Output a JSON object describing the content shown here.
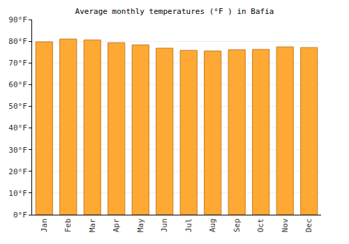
{
  "chart_data": {
    "type": "bar",
    "title": "Average monthly temperatures (°F ) in Bafia",
    "categories": [
      "Jan",
      "Feb",
      "Mar",
      "Apr",
      "May",
      "Jun",
      "Jul",
      "Aug",
      "Sep",
      "Oct",
      "Nov",
      "Dec"
    ],
    "values": [
      79.7,
      81.0,
      80.6,
      79.3,
      78.3,
      76.8,
      75.8,
      75.5,
      76.1,
      76.2,
      77.4,
      77.1
    ],
    "color": "#ffa935",
    "ylim": [
      0,
      90
    ],
    "yticks": [
      {
        "value": 0,
        "label": "0°F"
      },
      {
        "value": 10,
        "label": "10°F"
      },
      {
        "value": 20,
        "label": "20°F"
      },
      {
        "value": 30,
        "label": "30°F"
      },
      {
        "value": 40,
        "label": "40°F"
      },
      {
        "value": 50,
        "label": "50°F"
      },
      {
        "value": 60,
        "label": "60°F"
      },
      {
        "value": 70,
        "label": "70°F"
      },
      {
        "value": 80,
        "label": "80°F"
      },
      {
        "value": 90,
        "label": "90°F"
      }
    ],
    "grid": true
  }
}
